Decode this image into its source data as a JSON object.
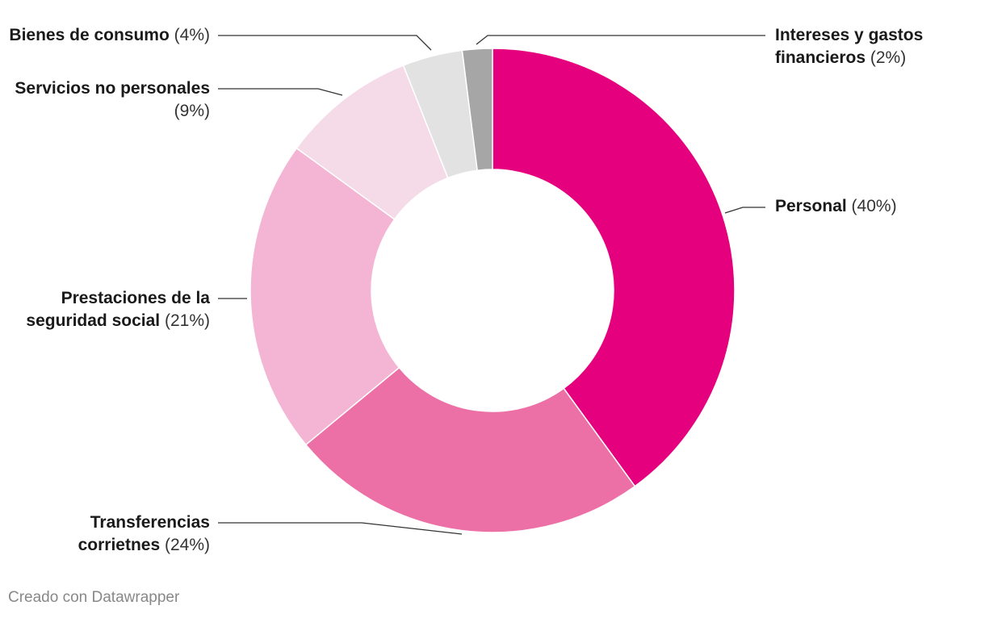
{
  "chart_data": {
    "type": "pie",
    "donut": true,
    "slices": [
      {
        "label": "Personal",
        "value": 40,
        "pct_text": "(40%)",
        "color": "#e5007e"
      },
      {
        "label": "Transferencias corrietnes",
        "value": 24,
        "pct_text": "(24%)",
        "color": "#ec6fa6"
      },
      {
        "label": "Prestaciones de la seguridad social",
        "value": 21,
        "pct_text": "(21%)",
        "color": "#f4b4d3"
      },
      {
        "label": "Servicios no personales",
        "value": 9,
        "pct_text": "(9%)",
        "color": "#f4dbe7"
      },
      {
        "label": "Bienes de consumo",
        "value": 4,
        "pct_text": "(4%)",
        "color": "#e2e2e2"
      },
      {
        "label": "Intereses y gastos financieros",
        "value": 2,
        "pct_text": "(2%)",
        "color": "#a6a6a6"
      }
    ]
  },
  "credit": "Creado con Datawrapper"
}
